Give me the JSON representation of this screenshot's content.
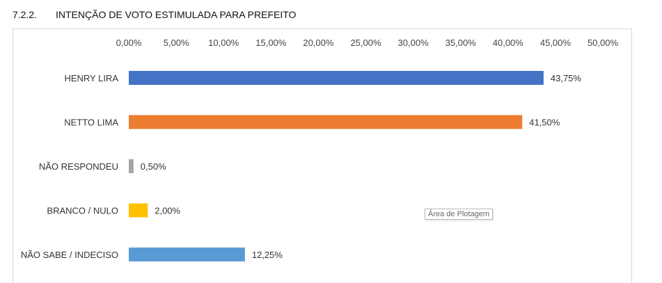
{
  "heading": {
    "number": "7.2.2.",
    "text": "INTENÇÃO DE VOTO ESTIMULADA PARA PREFEITO"
  },
  "tooltip": "Área de Plotagem",
  "chart_data": {
    "type": "bar",
    "orientation": "horizontal",
    "x_axis_position": "top",
    "xlim": [
      0,
      50
    ],
    "ticks": [
      "0,00%",
      "5,00%",
      "10,00%",
      "15,00%",
      "20,00%",
      "25,00%",
      "30,00%",
      "35,00%",
      "40,00%",
      "45,00%",
      "50,00%"
    ],
    "grid": false,
    "legend": "none",
    "categories": [
      "HENRY LIRA",
      "NETTO LIMA",
      "NÃO RESPONDEU",
      "BRANCO / NULO",
      "NÃO SABE / INDECISO"
    ],
    "values": [
      43.75,
      41.5,
      0.5,
      2.0,
      12.25
    ],
    "data_labels": [
      "43,75%",
      "41,50%",
      "0,50%",
      "2,00%",
      "12,25%"
    ],
    "colors": [
      "#4472C4",
      "#ED7D31",
      "#A5A5A5",
      "#FFC000",
      "#5B9BD5"
    ]
  }
}
